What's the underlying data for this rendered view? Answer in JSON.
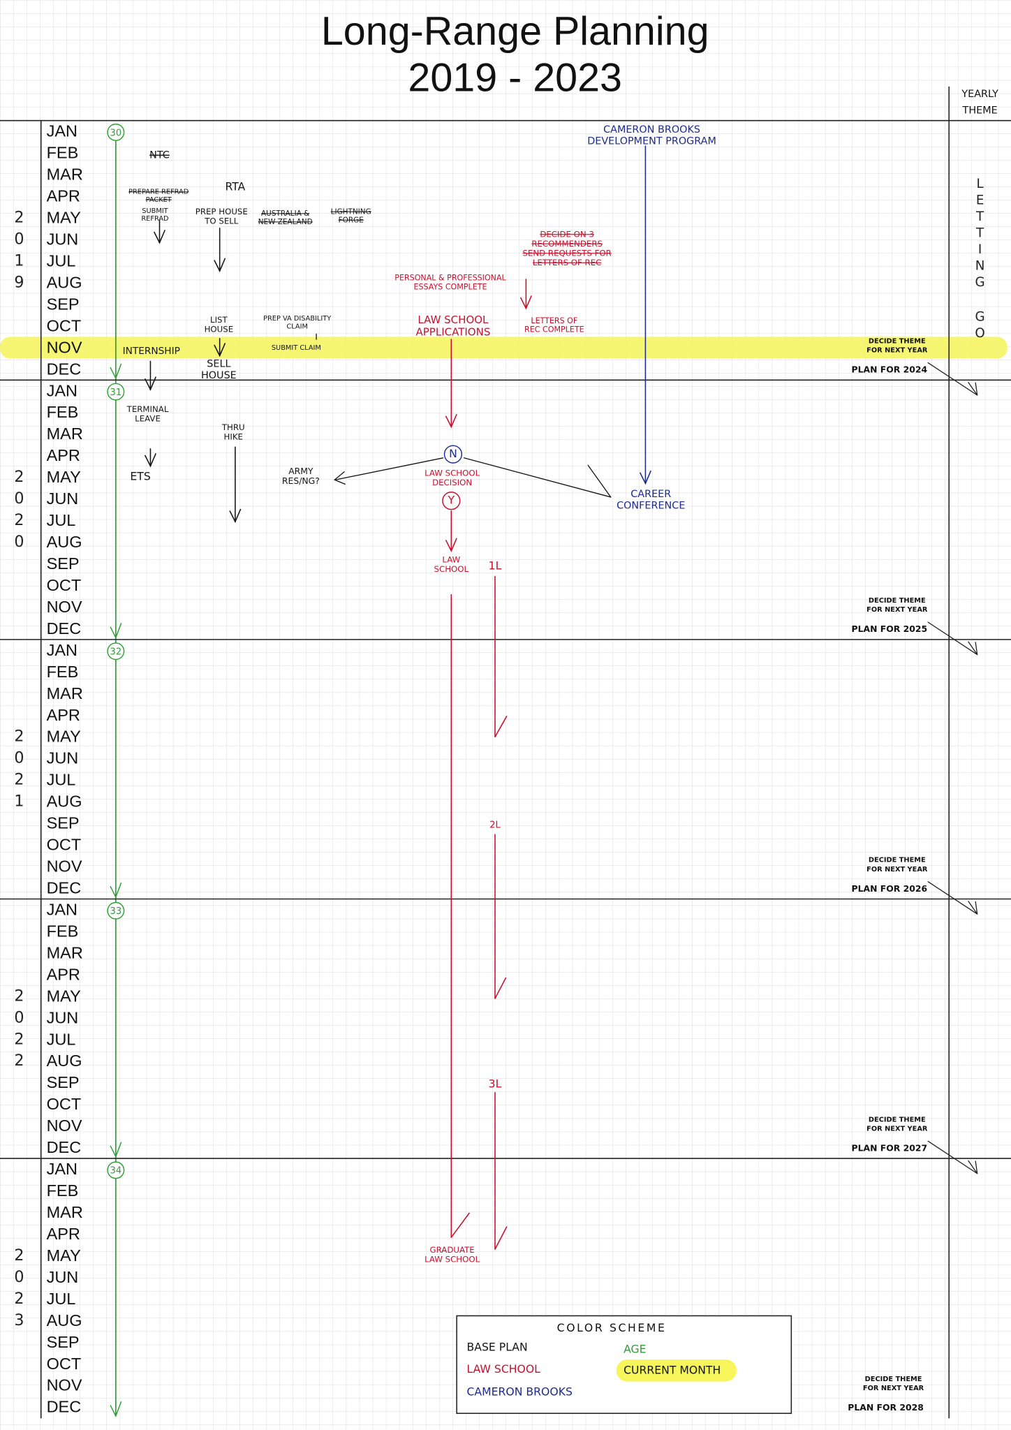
{
  "title": [
    "Long-Range Planning",
    "2019 - 2023"
  ],
  "theme_header": [
    "YEARLY",
    "THEME"
  ],
  "theme": [
    [
      "L",
      "E",
      "T",
      "T",
      "I",
      "N",
      "G"
    ],
    [
      "G",
      "O"
    ]
  ],
  "years": [
    {
      "digits": [
        "2",
        "0",
        "1",
        "9"
      ],
      "age": "30",
      "months": [
        "JAN",
        "FEB",
        "MAR",
        "APR",
        "MAY",
        "JUN",
        "JUL",
        "AUG",
        "SEP",
        "OCT",
        "NOV",
        "DEC"
      ],
      "current_month": 10,
      "note": [
        "DECIDE THEME",
        "FOR NEXT YEAR"
      ],
      "plan": "PLAN FOR 2024"
    },
    {
      "digits": [
        "2",
        "0",
        "2",
        "0"
      ],
      "age": "31",
      "months": [
        "JAN",
        "FEB",
        "MAR",
        "APR",
        "MAY",
        "JUN",
        "JUL",
        "AUG",
        "SEP",
        "OCT",
        "NOV",
        "DEC"
      ],
      "note": [
        "DECIDE THEME",
        "FOR NEXT YEAR"
      ],
      "plan": "PLAN FOR 2025"
    },
    {
      "digits": [
        "2",
        "0",
        "2",
        "1"
      ],
      "age": "32",
      "months": [
        "JAN",
        "FEB",
        "MAR",
        "APR",
        "MAY",
        "JUN",
        "JUL",
        "AUG",
        "SEP",
        "OCT",
        "NOV",
        "DEC"
      ],
      "note": [
        "DECIDE THEME",
        "FOR NEXT YEAR"
      ],
      "plan": "PLAN FOR 2026"
    },
    {
      "digits": [
        "2",
        "0",
        "2",
        "2"
      ],
      "age": "33",
      "months": [
        "JAN",
        "FEB",
        "MAR",
        "APR",
        "MAY",
        "JUN",
        "JUL",
        "AUG",
        "SEP",
        "OCT",
        "NOV",
        "DEC"
      ],
      "note": [
        "DECIDE THEME",
        "FOR NEXT YEAR"
      ],
      "plan": "PLAN FOR 2027"
    },
    {
      "digits": [
        "2",
        "0",
        "2",
        "3"
      ],
      "age": "34",
      "months": [
        "JAN",
        "FEB",
        "MAR",
        "APR",
        "MAY",
        "JUN",
        "JUL",
        "AUG",
        "SEP",
        "OCT",
        "NOV",
        "DEC"
      ],
      "note": [
        "DECIDE THEME",
        "FOR NEXT YEAR"
      ],
      "plan": "PLAN FOR 2028"
    }
  ],
  "annotations": [
    {
      "lines": [
        "NTC"
      ],
      "color": "black",
      "struck": true
    },
    {
      "lines": [
        "PREPARE REFRAD",
        "PACKET"
      ],
      "color": "black",
      "struck": true
    },
    {
      "lines": [
        "SUBMIT",
        "REFRAD"
      ],
      "color": "black"
    },
    {
      "lines": [
        "RTA"
      ],
      "color": "black"
    },
    {
      "lines": [
        "PREP HOUSE",
        "TO SELL"
      ],
      "color": "black"
    },
    {
      "lines": [
        "AUSTRALIA &",
        "NEW ZEALAND"
      ],
      "color": "black",
      "struck": true
    },
    {
      "lines": [
        "LIGHTNING",
        "FORGE"
      ],
      "color": "black",
      "struck": true
    },
    {
      "lines": [
        "LIST",
        "HOUSE"
      ],
      "color": "black"
    },
    {
      "lines": [
        "SELL",
        "HOUSE"
      ],
      "color": "black"
    },
    {
      "lines": [
        "PREP VA DISABILITY",
        "CLAIM"
      ],
      "color": "black"
    },
    {
      "lines": [
        "SUBMIT CLAIM"
      ],
      "color": "black"
    },
    {
      "lines": [
        "INTERNSHIP"
      ],
      "color": "black"
    },
    {
      "lines": [
        "TERMINAL",
        "LEAVE"
      ],
      "color": "black"
    },
    {
      "lines": [
        "THRU",
        "HIKE"
      ],
      "color": "black"
    },
    {
      "lines": [
        "ETS"
      ],
      "color": "black"
    },
    {
      "lines": [
        "ARMY",
        "RES/NG?"
      ],
      "color": "black"
    },
    {
      "lines": [
        "DECIDE ON 3",
        "RECOMMENDERS",
        "SEND REQUESTS FOR",
        "LETTERS OF REC"
      ],
      "color": "red",
      "struck": true
    },
    {
      "lines": [
        "PERSONAL & PROFESSIONAL",
        "ESSAYS COMPLETE"
      ],
      "color": "red"
    },
    {
      "lines": [
        "LAW SCHOOL",
        "APPLICATIONS"
      ],
      "color": "red"
    },
    {
      "lines": [
        "LETTERS OF",
        "REC COMPLETE"
      ],
      "color": "red"
    },
    {
      "lines": [
        "N"
      ],
      "color": "blue",
      "circled": true
    },
    {
      "lines": [
        "LAW SCHOOL",
        "DECISION"
      ],
      "color": "red"
    },
    {
      "lines": [
        "Y"
      ],
      "color": "red",
      "circled": true
    },
    {
      "lines": [
        "LAW",
        "SCHOOL"
      ],
      "color": "red"
    },
    {
      "lines": [
        "1L"
      ],
      "color": "red"
    },
    {
      "lines": [
        "2L"
      ],
      "color": "red"
    },
    {
      "lines": [
        "3L"
      ],
      "color": "red"
    },
    {
      "lines": [
        "GRADUATE",
        "LAW SCHOOL"
      ],
      "color": "red"
    },
    {
      "lines": [
        "CAMERON BROOKS",
        "DEVELOPMENT PROGRAM"
      ],
      "color": "blue"
    },
    {
      "lines": [
        "CAREER",
        "CONFERENCE"
      ],
      "color": "blue"
    }
  ],
  "legend": {
    "title": "COLOR SCHEME",
    "items": [
      {
        "label": "BASE PLAN",
        "color": "black"
      },
      {
        "label": "LAW SCHOOL",
        "color": "red"
      },
      {
        "label": "CAMERON BROOKS",
        "color": "blue"
      },
      {
        "label": "AGE",
        "color": "green"
      },
      {
        "label": "CURRENT MONTH",
        "color": "black",
        "highlight": true
      }
    ]
  }
}
